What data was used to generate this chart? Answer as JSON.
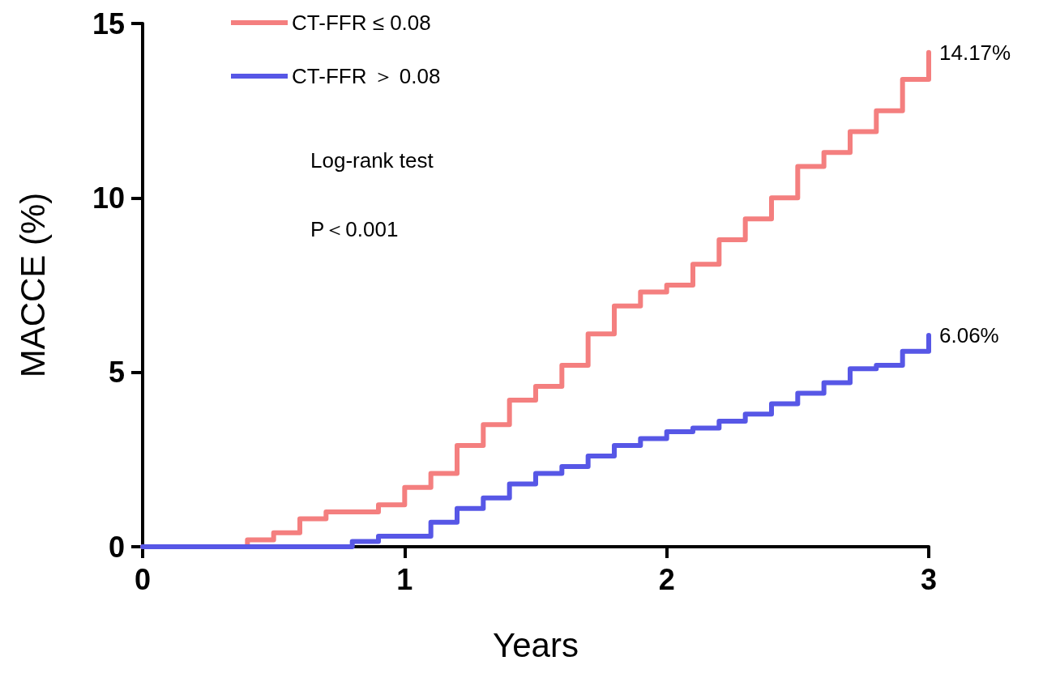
{
  "chart_data": {
    "type": "step",
    "xlabel": "Years",
    "ylabel": "MACCE (%)",
    "xlim": [
      0,
      3
    ],
    "xticks": [
      0,
      1,
      2,
      3
    ],
    "ylim": [
      0,
      15
    ],
    "yticks": [
      0,
      5,
      10,
      15
    ],
    "grid": false,
    "legend": "top left",
    "marker": "none",
    "line_style": "solid",
    "annotations": [
      "Log-rank test",
      "P＜0.001"
    ],
    "series": [
      {
        "name": "CT-FFR ≤ 0.08",
        "color": "#f47f7f",
        "x": [
          0,
          0.4,
          0.5,
          0.6,
          0.7,
          0.9,
          1.0,
          1.1,
          1.2,
          1.3,
          1.4,
          1.5,
          1.6,
          1.7,
          1.8,
          1.9,
          2.0,
          2.1,
          2.2,
          2.3,
          2.4,
          2.5,
          2.6,
          2.7,
          2.8,
          2.9,
          3.0
        ],
        "values": [
          0,
          0.2,
          0.4,
          0.8,
          1.0,
          1.2,
          1.7,
          2.1,
          2.9,
          3.5,
          4.2,
          4.6,
          5.2,
          6.1,
          6.9,
          7.3,
          7.5,
          8.1,
          8.8,
          9.4,
          10.0,
          10.9,
          11.3,
          11.9,
          12.5,
          13.4,
          14.17
        ],
        "value_labels": [
          null,
          null,
          null,
          null,
          null,
          null,
          null,
          null,
          null,
          null,
          null,
          null,
          null,
          null,
          null,
          null,
          null,
          null,
          null,
          null,
          null,
          null,
          null,
          null,
          null,
          null,
          "14.17%"
        ]
      },
      {
        "name": "CT-FFR ＞ 0.08",
        "color": "#5757e6",
        "x": [
          0,
          0.8,
          0.9,
          1.1,
          1.2,
          1.3,
          1.4,
          1.5,
          1.6,
          1.7,
          1.8,
          1.9,
          2.0,
          2.1,
          2.2,
          2.3,
          2.4,
          2.5,
          2.6,
          2.7,
          2.8,
          2.9,
          3.0
        ],
        "values": [
          0,
          0.15,
          0.3,
          0.7,
          1.1,
          1.4,
          1.8,
          2.1,
          2.3,
          2.6,
          2.9,
          3.1,
          3.3,
          3.4,
          3.6,
          3.8,
          4.1,
          4.4,
          4.7,
          5.1,
          5.2,
          5.6,
          6.06
        ],
        "value_labels": [
          null,
          null,
          null,
          null,
          null,
          null,
          null,
          null,
          null,
          null,
          null,
          null,
          null,
          null,
          null,
          null,
          null,
          null,
          null,
          null,
          null,
          null,
          "6.06%"
        ]
      }
    ]
  }
}
